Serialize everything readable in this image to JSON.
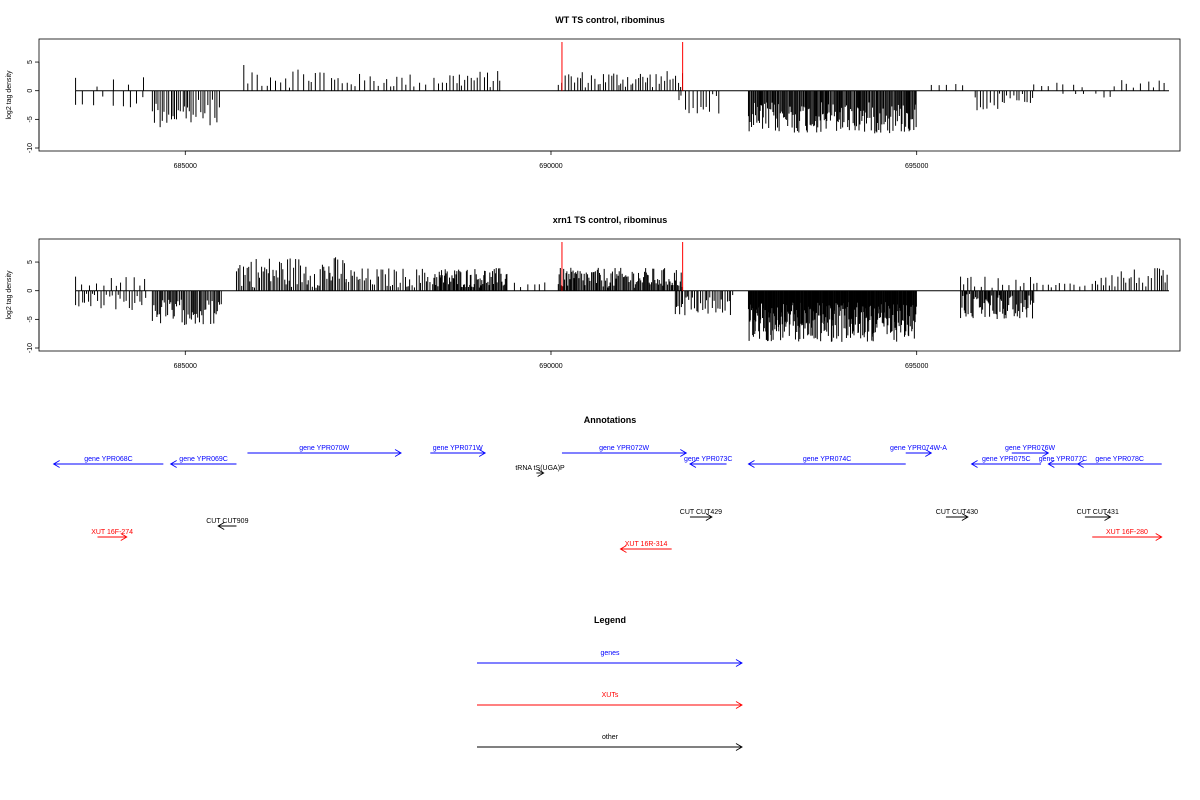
{
  "chart_data": [
    {
      "type": "bar",
      "title": "WT TS control, ribominus",
      "xlabel": "",
      "ylabel": "log2 tag density",
      "xlim": [
        683000,
        698600
      ],
      "ylim": [
        -10,
        8.5
      ],
      "xticks": [
        685000,
        690000,
        695000
      ],
      "xtick_labels": [
        "685000",
        "690000",
        "695000"
      ],
      "yticks": [
        -10,
        -5,
        0,
        5
      ],
      "ytick_labels": [
        "-10",
        "-5",
        "0",
        "5"
      ],
      "highlight_positions": [
        690150,
        691800
      ],
      "segments": [
        {
          "from": 683500,
          "to": 684500,
          "step": 110,
          "sign": -1,
          "lo": 0.5,
          "hi": 3.5
        },
        {
          "from": 683500,
          "to": 684500,
          "step": 230,
          "sign": 1,
          "lo": 0.5,
          "hi": 2.5
        },
        {
          "from": 684550,
          "to": 685500,
          "step": 30,
          "sign": -1,
          "lo": 1.5,
          "hi": 6.5
        },
        {
          "from": 685800,
          "to": 686900,
          "step": 55,
          "sign": 1,
          "lo": 0.5,
          "hi": 4.5
        },
        {
          "from": 687000,
          "to": 688300,
          "step": 60,
          "sign": 1,
          "lo": 0.5,
          "hi": 3
        },
        {
          "from": 688400,
          "to": 689300,
          "step": 45,
          "sign": 1,
          "lo": 0.5,
          "hi": 3.5
        },
        {
          "from": 690100,
          "to": 691800,
          "step": 35,
          "sign": 1,
          "lo": 0.5,
          "hi": 3.5
        },
        {
          "from": 691750,
          "to": 692300,
          "step": 45,
          "sign": -1,
          "lo": 0.5,
          "hi": 4
        },
        {
          "from": 692700,
          "to": 695000,
          "step": 14,
          "sign": -1,
          "lo": 2,
          "hi": 7.5
        },
        {
          "from": 695200,
          "to": 695700,
          "step": 120,
          "sign": 1,
          "lo": 0.5,
          "hi": 1.2
        },
        {
          "from": 695800,
          "to": 696600,
          "step": 40,
          "sign": -1,
          "lo": 0.5,
          "hi": 3.5
        },
        {
          "from": 696600,
          "to": 697300,
          "step": 110,
          "sign": 1,
          "lo": 0.5,
          "hi": 1.5
        },
        {
          "from": 697000,
          "to": 697700,
          "step": 130,
          "sign": -1,
          "lo": 0.5,
          "hi": 1.5
        },
        {
          "from": 697700,
          "to": 698450,
          "step": 90,
          "sign": 1,
          "lo": 0.5,
          "hi": 2
        }
      ]
    },
    {
      "type": "bar",
      "title": "xrn1 TS control, ribominus",
      "xlabel": "",
      "ylabel": "log2 tag density",
      "xlim": [
        683000,
        698600
      ],
      "ylim": [
        -10,
        8.5
      ],
      "xticks": [
        685000,
        690000,
        695000
      ],
      "xtick_labels": [
        "685000",
        "690000",
        "695000"
      ],
      "yticks": [
        -10,
        -5,
        0,
        5
      ],
      "ytick_labels": [
        "-10",
        "-5",
        "0",
        "5"
      ],
      "highlight_positions": [
        690150,
        691800
      ],
      "segments": [
        {
          "from": 683500,
          "to": 684500,
          "step": 40,
          "sign": -1,
          "lo": 0.5,
          "hi": 3.5
        },
        {
          "from": 683500,
          "to": 684500,
          "step": 90,
          "sign": 1,
          "lo": 0.5,
          "hi": 2.5
        },
        {
          "from": 684550,
          "to": 685500,
          "step": 18,
          "sign": -1,
          "lo": 1.5,
          "hi": 6
        },
        {
          "from": 685700,
          "to": 687200,
          "step": 22,
          "sign": 1,
          "lo": 0.5,
          "hi": 6
        },
        {
          "from": 687200,
          "to": 688400,
          "step": 28,
          "sign": 1,
          "lo": 0.5,
          "hi": 4
        },
        {
          "from": 688400,
          "to": 689400,
          "step": 14,
          "sign": 1,
          "lo": 0.5,
          "hi": 4
        },
        {
          "from": 689500,
          "to": 690000,
          "step": 90,
          "sign": 1,
          "lo": 0.5,
          "hi": 2
        },
        {
          "from": 690100,
          "to": 691800,
          "step": 16,
          "sign": 1,
          "lo": 0.5,
          "hi": 4
        },
        {
          "from": 691700,
          "to": 692500,
          "step": 25,
          "sign": -1,
          "lo": 0.5,
          "hi": 4.5
        },
        {
          "from": 692700,
          "to": 695000,
          "step": 8,
          "sign": -1,
          "lo": 2,
          "hi": 9
        },
        {
          "from": 695600,
          "to": 696600,
          "step": 15,
          "sign": -1,
          "lo": 0.5,
          "hi": 5
        },
        {
          "from": 695600,
          "to": 696600,
          "step": 70,
          "sign": 1,
          "lo": 0.5,
          "hi": 2.5
        },
        {
          "from": 696600,
          "to": 697300,
          "step": 60,
          "sign": 1,
          "lo": 0.5,
          "hi": 1.5
        },
        {
          "from": 697400,
          "to": 698450,
          "step": 35,
          "sign": 1,
          "lo": 0.5,
          "hi": 4
        }
      ]
    }
  ],
  "annotations": {
    "title": "Annotations",
    "features": [
      {
        "label": "gene YPR068C",
        "kind": "genes",
        "start": 683200,
        "end": 684700,
        "dir": -1,
        "row": 1
      },
      {
        "label": "gene YPR069C",
        "kind": "genes",
        "start": 684800,
        "end": 685700,
        "dir": -1,
        "row": 1
      },
      {
        "label": "gene YPR070W",
        "kind": "genes",
        "start": 685850,
        "end": 687950,
        "dir": 1,
        "row": 0
      },
      {
        "label": "gene YPR071W",
        "kind": "genes",
        "start": 688350,
        "end": 689100,
        "dir": 1,
        "row": 0
      },
      {
        "label": "tRNA tS(UGA)P",
        "kind": "other",
        "start": 689800,
        "end": 689900,
        "dir": 1,
        "row": 2
      },
      {
        "label": "gene YPR072W",
        "kind": "genes",
        "start": 690150,
        "end": 691850,
        "dir": 1,
        "row": 0
      },
      {
        "label": "gene YPR073C",
        "kind": "genes",
        "start": 691900,
        "end": 692400,
        "dir": -1,
        "row": 1
      },
      {
        "label": "gene YPR074C",
        "kind": "genes",
        "start": 692700,
        "end": 694850,
        "dir": -1,
        "row": 1
      },
      {
        "label": "gene YPR074W-A",
        "kind": "genes",
        "start": 694850,
        "end": 695200,
        "dir": 1,
        "row": 0
      },
      {
        "label": "gene YPR075C",
        "kind": "genes",
        "start": 695750,
        "end": 696700,
        "dir": -1,
        "row": 1
      },
      {
        "label": "gene YPR076W",
        "kind": "genes",
        "start": 696300,
        "end": 696800,
        "dir": 1,
        "row": 3
      },
      {
        "label": "gene YPR077C",
        "kind": "genes",
        "start": 696800,
        "end": 697200,
        "dir": -1,
        "row": 1
      },
      {
        "label": "gene YPR078C",
        "kind": "genes",
        "start": 697200,
        "end": 698350,
        "dir": -1,
        "row": 1
      },
      {
        "label": "CUT CUT909",
        "kind": "other",
        "start": 685450,
        "end": 685700,
        "dir": -1,
        "row": 4
      },
      {
        "label": "CUT CUT429",
        "kind": "other",
        "start": 691900,
        "end": 692200,
        "dir": 1,
        "row": 5
      },
      {
        "label": "CUT CUT430",
        "kind": "other",
        "start": 695400,
        "end": 695700,
        "dir": 1,
        "row": 5
      },
      {
        "label": "CUT CUT431",
        "kind": "other",
        "start": 697300,
        "end": 697650,
        "dir": 1,
        "row": 5
      },
      {
        "label": "XUT 16F-274",
        "kind": "XUTs",
        "start": 683800,
        "end": 684200,
        "dir": 1,
        "row": 6
      },
      {
        "label": "XUT 16R-314",
        "kind": "XUTs",
        "start": 690950,
        "end": 691650,
        "dir": -1,
        "row": 7
      },
      {
        "label": "XUT 16F-280",
        "kind": "XUTs",
        "start": 697400,
        "end": 698350,
        "dir": 1,
        "row": 6
      }
    ]
  },
  "legend": {
    "title": "Legend",
    "entries": [
      {
        "label": "genes",
        "color": "#0000ff"
      },
      {
        "label": "XUTs",
        "color": "#ff0000"
      },
      {
        "label": "other",
        "color": "#000000"
      }
    ]
  },
  "colors": {
    "genes": "#0000ff",
    "XUTs": "#ff0000",
    "other": "#000000",
    "highlight": "#ff0000"
  }
}
